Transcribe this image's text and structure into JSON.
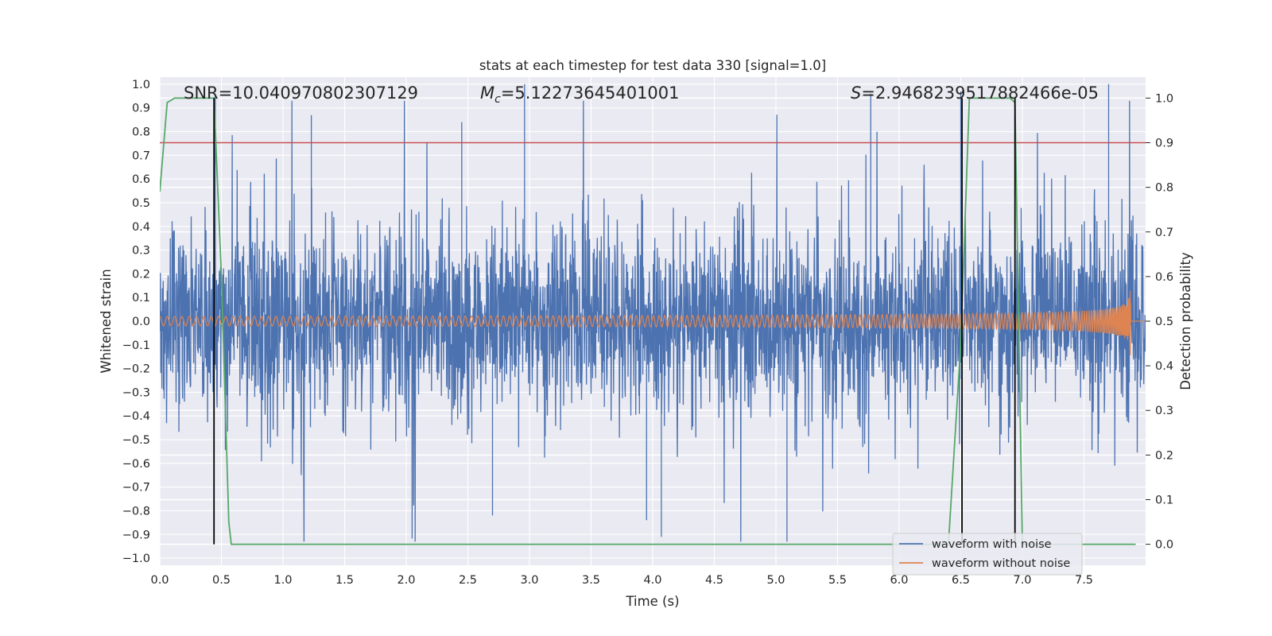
{
  "chart_data": {
    "type": "line",
    "title": "stats at each timestep for test data 330 [signal=1.0]",
    "xlabel": "Time (s)",
    "ylabel": "Whitened strain",
    "ylabel_right": "Detection probability",
    "xlim": [
      0.0,
      8.0
    ],
    "ylim": [
      -1.03,
      1.03
    ],
    "ylim_right": [
      -0.047,
      1.047
    ],
    "x_ticks": [
      "0.0",
      "0.5",
      "1.0",
      "1.5",
      "2.0",
      "2.5",
      "3.0",
      "3.5",
      "4.0",
      "4.5",
      "5.0",
      "5.5",
      "6.0",
      "6.5",
      "7.0",
      "7.5"
    ],
    "y_ticks": [
      "1.0",
      "0.9",
      "0.8",
      "0.7",
      "0.6",
      "0.5",
      "0.4",
      "0.3",
      "0.2",
      "0.1",
      "0.0",
      "−0.1",
      "−0.2",
      "−0.3",
      "−0.4",
      "−0.5",
      "−0.6",
      "−0.7",
      "−0.8",
      "−0.9",
      "−1.0"
    ],
    "y_ticks_right": [
      "1.0",
      "0.9",
      "0.8",
      "0.7",
      "0.6",
      "0.5",
      "0.4",
      "0.3",
      "0.2",
      "0.1",
      "0.0"
    ],
    "annotations": {
      "snr": "SNR=10.040970802307129",
      "mc_symbol": "M",
      "mc_sub": "c",
      "mc_value": "=5.12273645401001",
      "s_symbol": "S",
      "s_value": "=2.9468239517882466e-05"
    },
    "threshold_right": 0.9,
    "vertical_markers_x": [
      0.44,
      6.51,
      6.94
    ],
    "series": [
      {
        "name": "waveform with noise",
        "color": "#4c72b0",
        "axis": "left",
        "description_values": {
          "envelope_positive_typical": 0.5,
          "notable_peaks": [
            [
              0.45,
              0.96
            ],
            [
              1.23,
              0.87
            ],
            [
              2.45,
              0.84
            ],
            [
              2.96,
              1.0
            ],
            [
              5.77,
              0.96
            ],
            [
              6.5,
              0.97
            ],
            [
              7.7,
              1.0
            ]
          ],
          "notable_troughs": [
            [
              4.07,
              -0.91
            ],
            [
              5.09,
              -0.93
            ],
            [
              2.7,
              -0.82
            ],
            [
              3.95,
              -0.84
            ]
          ]
        }
      },
      {
        "name": "waveform without noise",
        "color": "#dd8452",
        "axis": "left",
        "description_values": {
          "amplitude_start": 0.02,
          "amplitude_at_6s": 0.06,
          "peak_near_merger": [
            [
              7.87,
              0.25
            ],
            [
              7.87,
              -0.32
            ]
          ],
          "merger_time": 7.88
        }
      },
      {
        "name": "detection probability",
        "color": "#55a868",
        "axis": "right",
        "x": [
          0.0,
          0.06,
          0.12,
          0.25,
          0.44,
          0.5,
          0.56,
          0.58,
          6.4,
          6.5,
          6.57,
          6.9,
          6.94,
          7.0,
          7.92
        ],
        "y": [
          0.79,
          0.99,
          1.0,
          1.0,
          1.0,
          0.6,
          0.05,
          0.0,
          0.0,
          0.45,
          1.0,
          1.0,
          0.99,
          0.0,
          0.0
        ]
      }
    ],
    "legend": {
      "placement": "lower-right",
      "entries": [
        "waveform with noise",
        "waveform without noise"
      ]
    },
    "colors": {
      "background": "#eaeaf2",
      "grid": "#ffffff",
      "threshold": "#c44e52",
      "marker": "#000000"
    }
  }
}
